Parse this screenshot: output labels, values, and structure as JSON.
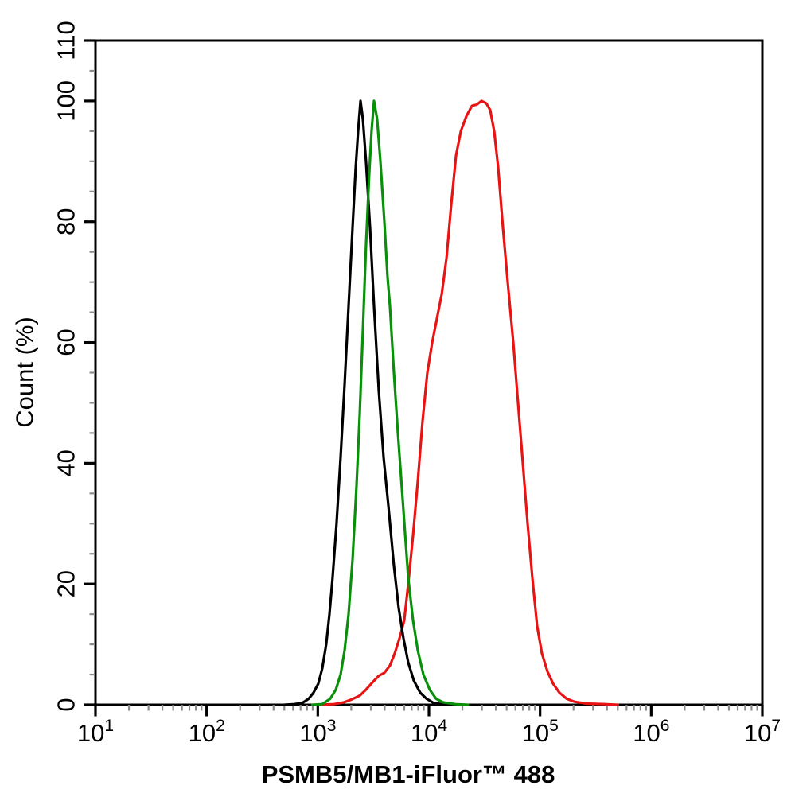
{
  "chart_data": {
    "type": "line",
    "subtype": "flow-cytometry-overlay-histogram",
    "title": "",
    "xlabel": "PSMB5/MB1-iFluor™ 488",
    "ylabel": "Count (%)",
    "x_scale": "log10",
    "x_range_log10": [
      1,
      7
    ],
    "x_tick_base": "10",
    "x_major_tick_exponents": [
      1,
      2,
      3,
      4,
      5,
      6,
      7
    ],
    "x_minor_ticks": "log decades 2-9",
    "ylim": [
      0,
      110
    ],
    "y_major_ticks": [
      0,
      20,
      40,
      60,
      80,
      100,
      110
    ],
    "y_minor_tick_step": 5,
    "grid": "off",
    "legend": "none",
    "frame": "full box",
    "frame_color": "#000000",
    "minor_tick_color": "#8c8c8c",
    "series": [
      {
        "name": "red-curve",
        "color": "#e81414",
        "peak_y_percent": 100,
        "peak_x_log10": 4.47,
        "points": [
          [
            3.0,
            0
          ],
          [
            3.148,
            0.1
          ],
          [
            3.234,
            0.4
          ],
          [
            3.306,
            0.9
          ],
          [
            3.377,
            1.5
          ],
          [
            3.434,
            2.5
          ],
          [
            3.492,
            3.7
          ],
          [
            3.549,
            4.8
          ],
          [
            3.599,
            5.3
          ],
          [
            3.649,
            6.5
          ],
          [
            3.692,
            8.5
          ],
          [
            3.735,
            11
          ],
          [
            3.778,
            14
          ],
          [
            3.814,
            20
          ],
          [
            3.857,
            28
          ],
          [
            3.9,
            37
          ],
          [
            3.943,
            47
          ],
          [
            3.986,
            55
          ],
          [
            4.029,
            60
          ],
          [
            4.072,
            64
          ],
          [
            4.115,
            68
          ],
          [
            4.158,
            74
          ],
          [
            4.201,
            83
          ],
          [
            4.244,
            91
          ],
          [
            4.287,
            95
          ],
          [
            4.337,
            97.5
          ],
          [
            4.387,
            99.2
          ],
          [
            4.43,
            99.4
          ],
          [
            4.473,
            100
          ],
          [
            4.516,
            99.6
          ],
          [
            4.551,
            98.5
          ],
          [
            4.587,
            95
          ],
          [
            4.623,
            89
          ],
          [
            4.666,
            79
          ],
          [
            4.709,
            70
          ],
          [
            4.759,
            60
          ],
          [
            4.802,
            50
          ],
          [
            4.845,
            40
          ],
          [
            4.888,
            30
          ],
          [
            4.931,
            21
          ],
          [
            4.974,
            13
          ],
          [
            5.017,
            8.5
          ],
          [
            5.067,
            5.5
          ],
          [
            5.117,
            3.5
          ],
          [
            5.174,
            2
          ],
          [
            5.239,
            1
          ],
          [
            5.31,
            0.5
          ],
          [
            5.418,
            0.2
          ],
          [
            5.583,
            0.1
          ],
          [
            5.7,
            0
          ]
        ]
      },
      {
        "name": "black-curve",
        "color": "#000000",
        "peak_y_percent": 100,
        "peak_x_log10": 3.38,
        "points": [
          [
            2.7,
            0
          ],
          [
            2.79,
            0.1
          ],
          [
            2.861,
            0.3
          ],
          [
            2.919,
            1
          ],
          [
            2.962,
            2
          ],
          [
            3.005,
            3.5
          ],
          [
            3.04,
            6
          ],
          [
            3.076,
            10
          ],
          [
            3.105,
            15
          ],
          [
            3.133,
            21
          ],
          [
            3.169,
            30
          ],
          [
            3.205,
            41
          ],
          [
            3.241,
            53
          ],
          [
            3.277,
            66
          ],
          [
            3.313,
            79
          ],
          [
            3.341,
            89
          ],
          [
            3.363,
            95
          ],
          [
            3.384,
            100
          ],
          [
            3.406,
            97
          ],
          [
            3.434,
            90
          ],
          [
            3.47,
            79
          ],
          [
            3.506,
            66
          ],
          [
            3.549,
            52
          ],
          [
            3.592,
            41
          ],
          [
            3.635,
            33
          ],
          [
            3.685,
            23
          ],
          [
            3.728,
            16
          ],
          [
            3.771,
            11
          ],
          [
            3.814,
            7
          ],
          [
            3.864,
            4
          ],
          [
            3.921,
            2
          ],
          [
            3.978,
            1
          ],
          [
            4.043,
            0.3
          ],
          [
            4.136,
            0.05
          ],
          [
            4.25,
            0
          ]
        ]
      },
      {
        "name": "green-curve",
        "color": "#0a8f0a",
        "peak_y_percent": 100,
        "peak_x_log10": 3.51,
        "points": [
          [
            2.95,
            0
          ],
          [
            3.04,
            0.1
          ],
          [
            3.112,
            1
          ],
          [
            3.162,
            2.5
          ],
          [
            3.205,
            5
          ],
          [
            3.241,
            9
          ],
          [
            3.277,
            15
          ],
          [
            3.313,
            24
          ],
          [
            3.348,
            36
          ],
          [
            3.377,
            48
          ],
          [
            3.406,
            62
          ],
          [
            3.434,
            76
          ],
          [
            3.463,
            88
          ],
          [
            3.484,
            95
          ],
          [
            3.506,
            100
          ],
          [
            3.534,
            97
          ],
          [
            3.563,
            90
          ],
          [
            3.599,
            80
          ],
          [
            3.627,
            71
          ],
          [
            3.649,
            66
          ],
          [
            3.685,
            55
          ],
          [
            3.721,
            45
          ],
          [
            3.764,
            34
          ],
          [
            3.814,
            21
          ],
          [
            3.857,
            14
          ],
          [
            3.9,
            9
          ],
          [
            3.95,
            5
          ],
          [
            4.007,
            2.5
          ],
          [
            4.064,
            1
          ],
          [
            4.129,
            0.4
          ],
          [
            4.236,
            0.1
          ],
          [
            4.35,
            0
          ]
        ]
      }
    ]
  }
}
